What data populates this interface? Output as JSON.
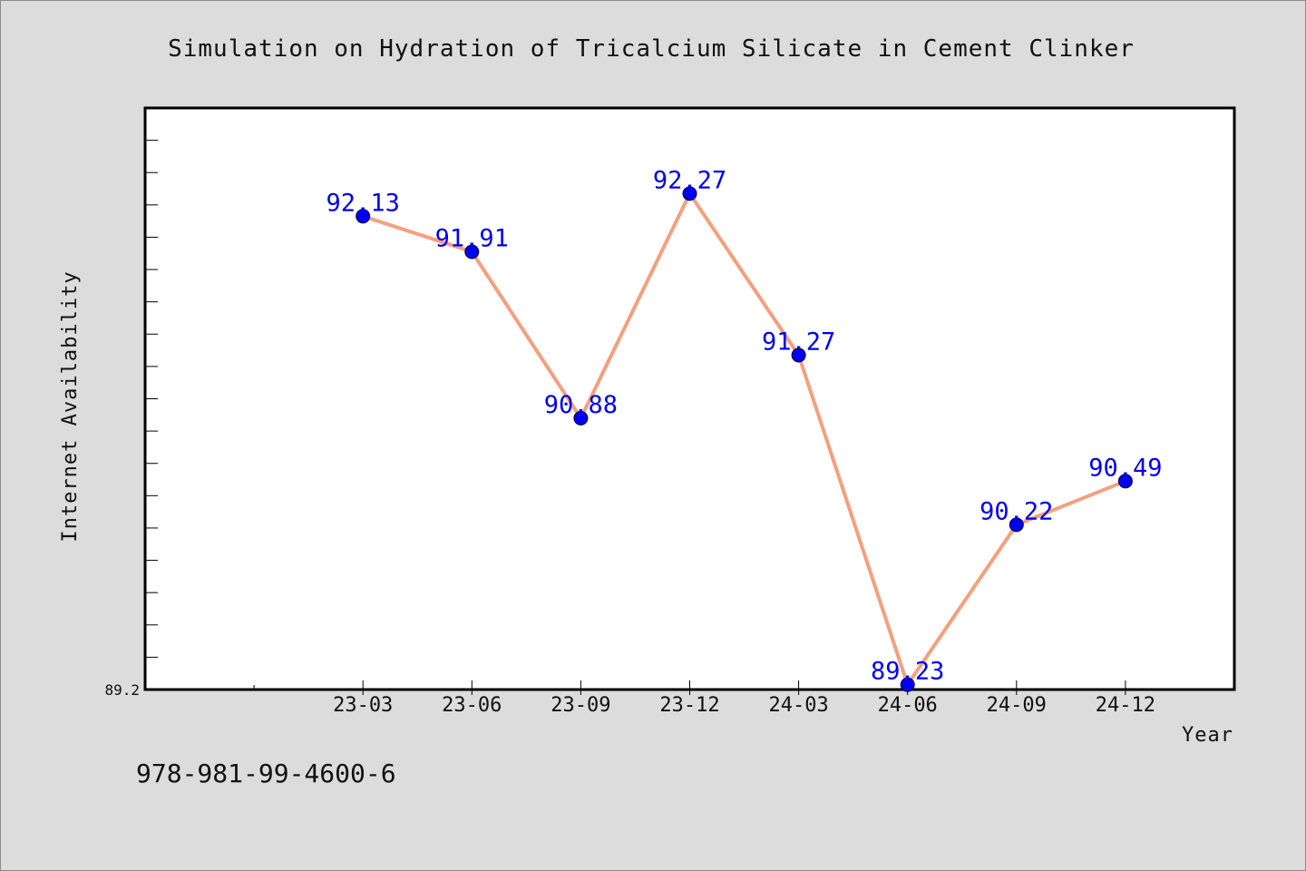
{
  "chart_data": {
    "type": "line",
    "title": "Simulation on Hydration of Tricalcium Silicate in Cement Clinker",
    "xlabel": "Year",
    "ylabel": "Internet Availability",
    "categories": [
      "23-03",
      "23-06",
      "23-09",
      "23-12",
      "24-03",
      "24-06",
      "24-09",
      "24-12"
    ],
    "series": [
      {
        "values": [
          92.13,
          91.91,
          90.88,
          92.27,
          91.27,
          89.23,
          90.22,
          90.49
        ]
      }
    ],
    "data_labels": [
      "92.13",
      "91.91",
      "90.88",
      "92.27",
      "91.27",
      "89.23",
      "90.22",
      "90.49"
    ],
    "y_tick_labels": [
      "89.2"
    ],
    "ylim": [
      89.2,
      92.8
    ],
    "x_slots": 10,
    "grid": false,
    "line_color": "#f4a07e",
    "marker_color": "#0000ee",
    "label_color": "#0000ee"
  },
  "footer_text": "978-981-99-4600-6"
}
